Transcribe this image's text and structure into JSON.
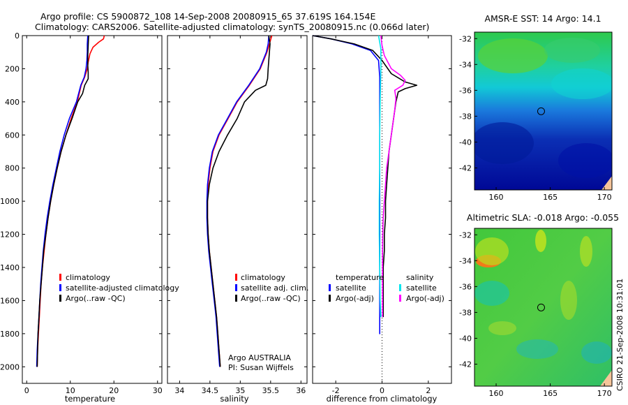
{
  "title_line1": "Argo profile: CS 5900872_108 14-Sep-2008 20080915_65 37.619S 164.154E",
  "title_line2": "Climatology: CARS2006. Satellite-adjusted climatology: synTS_20080915.nc (0.066d later)",
  "credit": "CSIRO 21-Sep-2008 10:31:01",
  "colors": {
    "climatology": "#ff0000",
    "satellite": "#0000ff",
    "argo": "#000000",
    "salinity_satellite": "#00e5ee",
    "salinity_argo": "#ff00ff"
  },
  "chart_data": [
    {
      "type": "line",
      "id": "temperature",
      "xlabel": "temperature",
      "xlim": [
        -1,
        31
      ],
      "ylim": [
        0,
        2100
      ],
      "y_reversed": true,
      "xticks": [
        0,
        10,
        20,
        30
      ],
      "yticks": [
        0,
        200,
        400,
        600,
        800,
        1000,
        1200,
        1400,
        1600,
        1800,
        2000
      ],
      "series": [
        {
          "name": "climatology",
          "color": "#ff0000",
          "points": [
            [
              17.8,
              0
            ],
            [
              17.6,
              20
            ],
            [
              16.5,
              40
            ],
            [
              15.2,
              70
            ],
            [
              14.5,
              110
            ],
            [
              14.1,
              160
            ],
            [
              13.9,
              200
            ],
            [
              13.3,
              250
            ],
            [
              12.5,
              300
            ],
            [
              11.6,
              400
            ],
            [
              10.2,
              500
            ],
            [
              9.0,
              600
            ],
            [
              7.9,
              700
            ],
            [
              7.0,
              800
            ],
            [
              6.2,
              900
            ],
            [
              5.5,
              1000
            ],
            [
              4.9,
              1100
            ],
            [
              4.4,
              1200
            ],
            [
              4.0,
              1300
            ],
            [
              3.6,
              1400
            ],
            [
              3.3,
              1500
            ],
            [
              3.1,
              1600
            ],
            [
              2.9,
              1700
            ],
            [
              2.7,
              1800
            ],
            [
              2.5,
              1900
            ],
            [
              2.4,
              2000
            ]
          ]
        },
        {
          "name": "satellite-adjusted climatology",
          "color": "#0000ff",
          "points": [
            [
              14.0,
              0
            ],
            [
              13.9,
              50
            ],
            [
              13.9,
              100
            ],
            [
              13.8,
              150
            ],
            [
              13.6,
              200
            ],
            [
              13.2,
              250
            ],
            [
              12.4,
              300
            ],
            [
              11.4,
              400
            ],
            [
              9.8,
              500
            ],
            [
              8.6,
              600
            ],
            [
              7.6,
              700
            ],
            [
              6.8,
              800
            ],
            [
              6.0,
              900
            ],
            [
              5.3,
              1000
            ],
            [
              4.7,
              1100
            ],
            [
              4.2,
              1200
            ],
            [
              3.8,
              1300
            ],
            [
              3.5,
              1400
            ],
            [
              3.2,
              1500
            ],
            [
              3.0,
              1600
            ],
            [
              2.8,
              1700
            ],
            [
              2.6,
              1800
            ],
            [
              2.4,
              1900
            ],
            [
              2.3,
              2000
            ]
          ]
        },
        {
          "name": "Argo(..raw -QC)",
          "color": "#000000",
          "points": [
            [
              14.2,
              0
            ],
            [
              14.1,
              60
            ],
            [
              14.0,
              120
            ],
            [
              14.0,
              180
            ],
            [
              14.1,
              220
            ],
            [
              14.1,
              260
            ],
            [
              13.3,
              300
            ],
            [
              12.8,
              350
            ],
            [
              11.7,
              400
            ],
            [
              10.4,
              500
            ],
            [
              9.0,
              600
            ],
            [
              7.9,
              700
            ],
            [
              7.0,
              800
            ],
            [
              6.2,
              900
            ],
            [
              5.5,
              1000
            ],
            [
              4.9,
              1100
            ],
            [
              4.4,
              1200
            ],
            [
              3.9,
              1300
            ],
            [
              3.6,
              1400
            ],
            [
              3.3,
              1500
            ],
            [
              3.0,
              1600
            ],
            [
              2.8,
              1700
            ],
            [
              2.6,
              1800
            ],
            [
              2.5,
              1900
            ],
            [
              2.4,
              2000
            ]
          ]
        }
      ],
      "legend": [
        "climatology",
        "satellite-adjusted climatology",
        "Argo(..raw -QC)"
      ]
    },
    {
      "type": "line",
      "id": "salinity",
      "xlabel": "salinity",
      "xlim": [
        33.8,
        36.1
      ],
      "ylim": [
        0,
        2100
      ],
      "y_reversed": true,
      "xticks": [
        34,
        34.5,
        35,
        35.5,
        36
      ],
      "series": [
        {
          "name": "climatology",
          "color": "#ff0000",
          "points": [
            [
              35.52,
              0
            ],
            [
              35.48,
              50
            ],
            [
              35.44,
              100
            ],
            [
              35.33,
              200
            ],
            [
              35.15,
              300
            ],
            [
              34.95,
              400
            ],
            [
              34.8,
              500
            ],
            [
              34.65,
              600
            ],
            [
              34.55,
              700
            ],
            [
              34.5,
              800
            ],
            [
              34.47,
              900
            ],
            [
              34.46,
              1000
            ],
            [
              34.46,
              1100
            ],
            [
              34.47,
              1200
            ],
            [
              34.49,
              1300
            ],
            [
              34.52,
              1400
            ],
            [
              34.55,
              1500
            ],
            [
              34.58,
              1600
            ],
            [
              34.61,
              1700
            ],
            [
              34.63,
              1800
            ],
            [
              34.65,
              1900
            ],
            [
              34.67,
              2000
            ]
          ]
        },
        {
          "name": "satellite adj. clim.",
          "color": "#0000ff",
          "points": [
            [
              35.47,
              0
            ],
            [
              35.46,
              50
            ],
            [
              35.43,
              100
            ],
            [
              35.32,
              200
            ],
            [
              35.14,
              300
            ],
            [
              34.94,
              400
            ],
            [
              34.79,
              500
            ],
            [
              34.64,
              600
            ],
            [
              34.54,
              700
            ],
            [
              34.49,
              800
            ],
            [
              34.46,
              900
            ],
            [
              34.45,
              1000
            ],
            [
              34.45,
              1100
            ],
            [
              34.46,
              1200
            ],
            [
              34.48,
              1300
            ],
            [
              34.51,
              1400
            ],
            [
              34.54,
              1500
            ],
            [
              34.57,
              1600
            ],
            [
              34.6,
              1700
            ],
            [
              34.62,
              1800
            ],
            [
              34.64,
              1900
            ],
            [
              34.66,
              2000
            ]
          ]
        },
        {
          "name": "Argo(..raw -QC)",
          "color": "#000000",
          "points": [
            [
              35.47,
              0
            ],
            [
              35.49,
              50
            ],
            [
              35.48,
              100
            ],
            [
              35.46,
              200
            ],
            [
              35.45,
              260
            ],
            [
              35.42,
              300
            ],
            [
              35.25,
              330
            ],
            [
              35.07,
              400
            ],
            [
              34.95,
              500
            ],
            [
              34.79,
              600
            ],
            [
              34.65,
              700
            ],
            [
              34.55,
              800
            ],
            [
              34.49,
              900
            ],
            [
              34.46,
              1000
            ],
            [
              34.46,
              1100
            ],
            [
              34.47,
              1200
            ],
            [
              34.49,
              1300
            ],
            [
              34.52,
              1400
            ],
            [
              34.55,
              1500
            ],
            [
              34.58,
              1600
            ],
            [
              34.61,
              1700
            ],
            [
              34.63,
              1800
            ],
            [
              34.65,
              1900
            ],
            [
              34.67,
              2000
            ]
          ]
        }
      ],
      "legend": [
        "climatology",
        "satellite adj. clim.",
        "Argo(..raw -QC)"
      ],
      "annotation_line1": "Argo AUSTRALIA",
      "annotation_line2": "PI: Susan Wijffels"
    },
    {
      "type": "line",
      "id": "difference",
      "xlabel": "difference from climatology",
      "xlim": [
        -3,
        3
      ],
      "ylim": [
        0,
        2100
      ],
      "y_reversed": true,
      "xticks": [
        -2,
        0,
        2
      ],
      "zero_line": true,
      "series": [
        {
          "name": "temperature satellite",
          "color": "#0000ff",
          "points": [
            [
              -3.0,
              0
            ],
            [
              -2.2,
              20
            ],
            [
              -1.3,
              50
            ],
            [
              -0.5,
              90
            ],
            [
              -0.15,
              150
            ],
            [
              -0.1,
              250
            ],
            [
              -0.1,
              400
            ],
            [
              -0.1,
              600
            ],
            [
              -0.1,
              800
            ],
            [
              -0.1,
              1000
            ],
            [
              -0.1,
              1200
            ],
            [
              -0.1,
              1400
            ],
            [
              -0.1,
              1600
            ],
            [
              -0.1,
              1800
            ],
            [
              -0.1,
              1700
            ]
          ]
        },
        {
          "name": "temperature Argo(-adj)",
          "color": "#000000",
          "points": [
            [
              -3.0,
              0
            ],
            [
              -2.2,
              20
            ],
            [
              -1.2,
              50
            ],
            [
              -0.4,
              90
            ],
            [
              0.0,
              150
            ],
            [
              0.4,
              230
            ],
            [
              1.0,
              280
            ],
            [
              1.5,
              300
            ],
            [
              1.0,
              320
            ],
            [
              0.7,
              340
            ],
            [
              0.6,
              400
            ],
            [
              0.5,
              500
            ],
            [
              0.4,
              600
            ],
            [
              0.3,
              700
            ],
            [
              0.25,
              800
            ],
            [
              0.2,
              900
            ],
            [
              0.15,
              1000
            ],
            [
              0.15,
              1100
            ],
            [
              0.1,
              1200
            ],
            [
              0.1,
              1300
            ],
            [
              0.05,
              1400
            ],
            [
              0.05,
              1500
            ],
            [
              0.05,
              1600
            ],
            [
              0.05,
              1700
            ]
          ]
        },
        {
          "name": "salinity satellite",
          "color": "#00e5ee",
          "points": [
            [
              -0.15,
              0
            ],
            [
              -0.05,
              80
            ],
            [
              -0.05,
              200
            ],
            [
              -0.08,
              400
            ],
            [
              -0.1,
              600
            ],
            [
              -0.1,
              800
            ],
            [
              -0.12,
              1000
            ],
            [
              -0.12,
              1200
            ],
            [
              -0.1,
              1400
            ],
            [
              -0.08,
              1600
            ],
            [
              -0.05,
              1700
            ]
          ]
        },
        {
          "name": "salinity Argo(-adj)",
          "color": "#ff00ff",
          "points": [
            [
              -0.05,
              0
            ],
            [
              0.0,
              60
            ],
            [
              0.1,
              120
            ],
            [
              0.4,
              200
            ],
            [
              0.8,
              240
            ],
            [
              1.0,
              270
            ],
            [
              0.9,
              300
            ],
            [
              0.55,
              330
            ],
            [
              0.6,
              380
            ],
            [
              0.55,
              450
            ],
            [
              0.5,
              500
            ],
            [
              0.4,
              600
            ],
            [
              0.3,
              700
            ],
            [
              0.2,
              800
            ],
            [
              0.15,
              900
            ],
            [
              0.1,
              1000
            ],
            [
              0.05,
              1100
            ],
            [
              0.03,
              1200
            ],
            [
              0.02,
              1300
            ],
            [
              0.02,
              1400
            ],
            [
              0.02,
              1500
            ],
            [
              0.02,
              1600
            ],
            [
              0.02,
              1700
            ]
          ]
        }
      ],
      "legend_temperature_title": "temperature",
      "legend_salinity_title": "salinity",
      "legend_temperature": [
        "satellite",
        "Argo(-adj)"
      ],
      "legend_salinity": [
        "satellite",
        "Argo(-adj)"
      ]
    },
    {
      "type": "heatmap",
      "id": "sst_map",
      "title": "AMSR-E SST: 14 Argo: 14.1",
      "xlim": [
        158,
        170.7
      ],
      "ylim": [
        -43.7,
        -31.5
      ],
      "xticks": [
        160,
        165,
        170
      ],
      "yticks": [
        -32,
        -34,
        -36,
        -38,
        -40,
        -42
      ],
      "marker": [
        164.154,
        -37.619
      ]
    },
    {
      "type": "heatmap",
      "id": "sla_map",
      "title": "Altimetric SLA: -0.018 Argo: -0.055",
      "xlim": [
        158,
        170.7
      ],
      "ylim": [
        -43.7,
        -31.5
      ],
      "xticks": [
        160,
        165,
        170
      ],
      "yticks": [
        -32,
        -34,
        -36,
        -38,
        -40,
        -42
      ],
      "marker": [
        164.154,
        -37.619
      ]
    }
  ]
}
